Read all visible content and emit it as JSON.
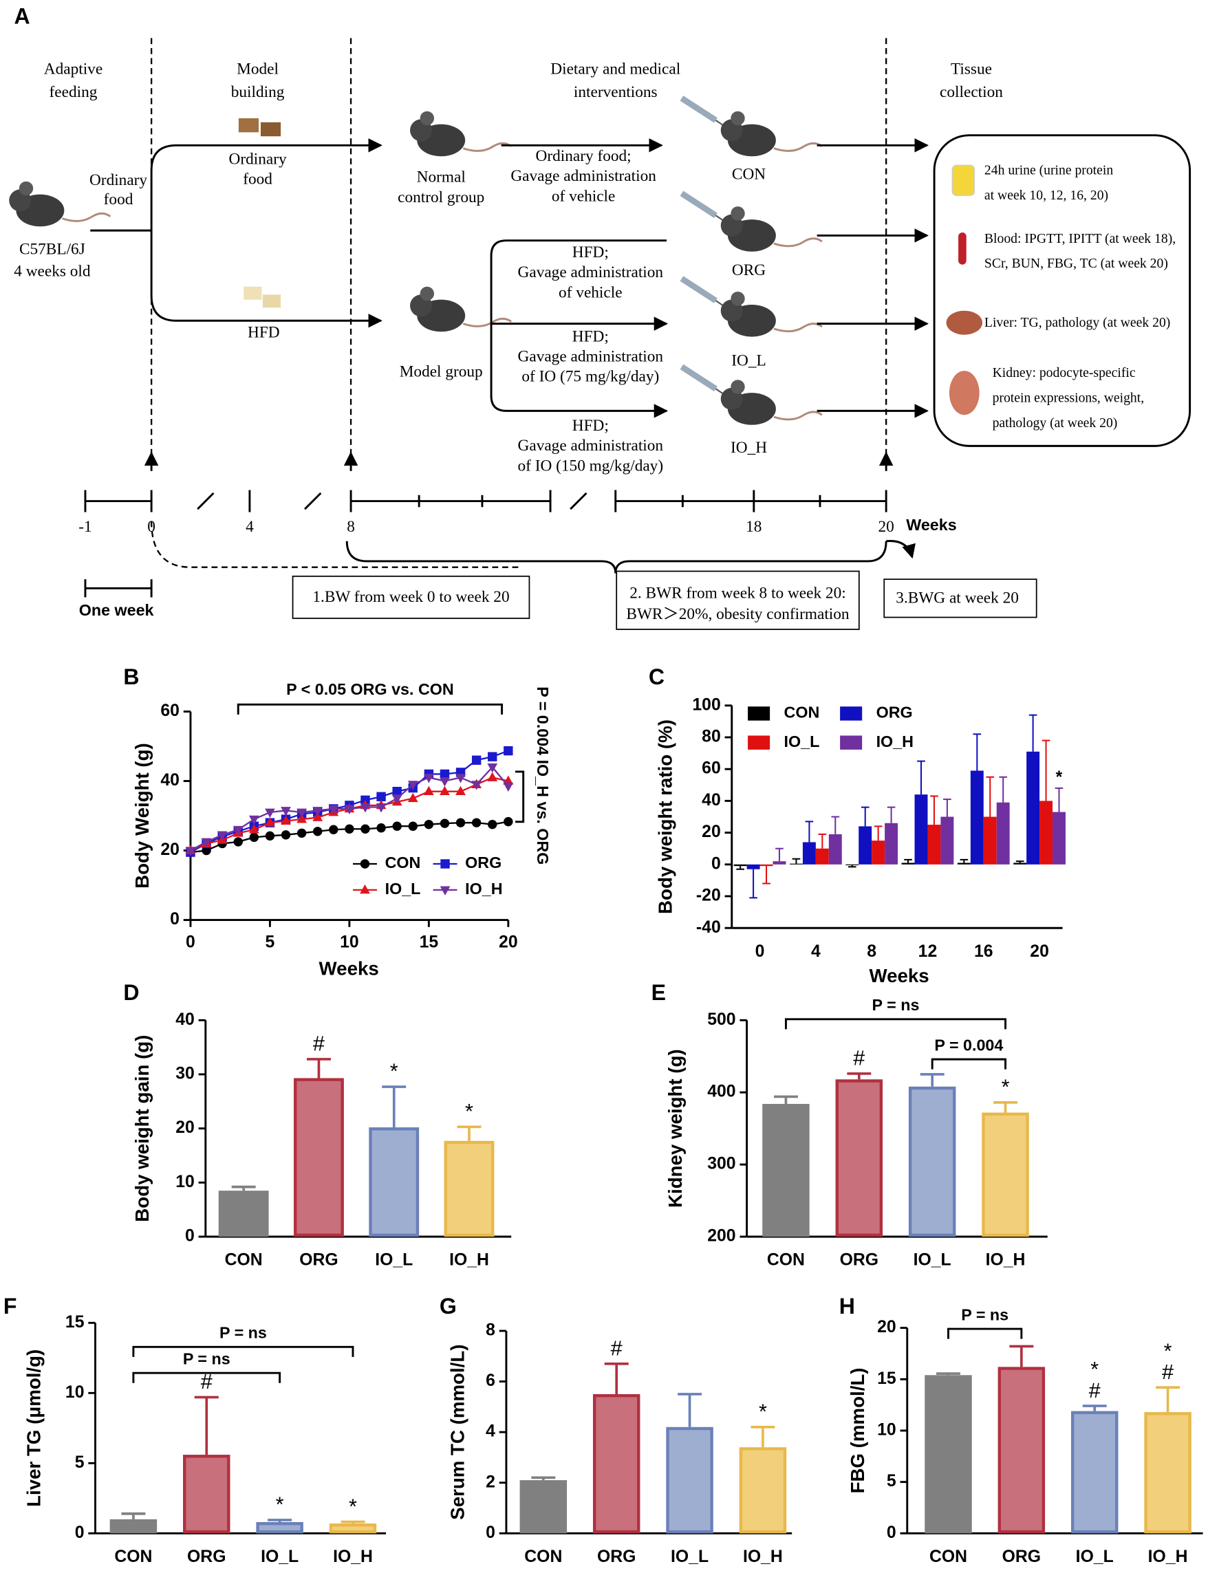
{
  "diagram": {
    "label": "A",
    "stages": [
      [
        "Adaptive",
        "feeding"
      ],
      [
        "Model",
        "building"
      ],
      [
        "Dietary and medical",
        "interventions"
      ],
      [
        "Tissue",
        "collection"
      ]
    ],
    "mouse": [
      "C57BL/6J",
      "4 weeks old"
    ],
    "feed": [
      "Ordinary",
      "food"
    ],
    "diets": [
      [
        "Ordinary",
        "food"
      ],
      [
        "HFD"
      ]
    ],
    "cohorts": [
      [
        "Normal",
        "control group"
      ],
      [
        "Model group"
      ]
    ],
    "treatments": [
      [
        "Ordinary food;",
        "Gavage  administration",
        "of vehicle"
      ],
      [
        "HFD;",
        "Gavage  administration",
        "of vehicle"
      ],
      [
        "HFD;",
        "Gavage  administration",
        "of  IO (75 mg/kg/day)"
      ],
      [
        "HFD;",
        "Gavage  administration",
        "of  IO (150 mg/kg/day)"
      ]
    ],
    "groups": [
      "CON",
      "ORG",
      "IO_L",
      "IO_H"
    ],
    "collection": [
      [
        "24h urine (urine protein",
        "at week 10, 12, 16, 20)"
      ],
      [
        "Blood: IPGTT, IPITT (at week 18),",
        "SCr, BUN, FBG, TC (at week 20)"
      ],
      [
        "Liver: TG, pathology (at week 20)"
      ],
      [
        "Kidney: podocyte-specific",
        "protein expressions, weight,",
        "pathology (at week 20)"
      ]
    ],
    "timeline": {
      "ticks": [
        "-1",
        "0",
        "4",
        "8",
        "18",
        "20"
      ],
      "unit": "Weeks",
      "scale": "One week"
    },
    "measures": [
      [
        "1.BW from week 0 to week 20"
      ],
      [
        "2. BWR from week 8 to week 20:",
        "BWR＞20%, obesity confirmation"
      ],
      [
        "3.BWG at week 20"
      ]
    ]
  },
  "chart_data": [
    {
      "type": "line",
      "label": "B",
      "ylabel": "Body Weight (g)",
      "xlabel": "Weeks",
      "x": [
        0,
        1,
        2,
        3,
        4,
        5,
        6,
        7,
        8,
        9,
        10,
        11,
        12,
        13,
        14,
        15,
        16,
        17,
        18,
        19,
        20
      ],
      "xlim": [
        0,
        20
      ],
      "xticks": [
        0,
        5,
        10,
        15,
        20
      ],
      "ylim": [
        0,
        60
      ],
      "yticks": [
        0,
        20,
        40,
        60
      ],
      "series": [
        {
          "name": "CON",
          "color": "#000000",
          "marker": "circle",
          "values": [
            19.5,
            20,
            22,
            22.5,
            23.8,
            24.2,
            24.5,
            25,
            25.5,
            26,
            26.2,
            26.2,
            26.5,
            27,
            27,
            27.5,
            27.8,
            28,
            28,
            27.5,
            28.3
          ]
        },
        {
          "name": "ORG",
          "color": "#1a1ad0",
          "marker": "square",
          "values": [
            19.5,
            22,
            24,
            25.5,
            27,
            28,
            29,
            30.5,
            31,
            32,
            33,
            34.5,
            35.5,
            37,
            38,
            42,
            42,
            42.5,
            46,
            47,
            48.7
          ]
        },
        {
          "name": "IO_L",
          "color": "#e0141e",
          "marker": "triangle",
          "values": [
            20,
            22,
            23,
            25,
            26,
            28,
            28.5,
            29,
            29.5,
            31,
            32,
            33,
            33,
            34,
            35,
            37,
            37,
            37,
            39,
            41,
            40
          ]
        },
        {
          "name": "IO_H",
          "color": "#7030a0",
          "marker": "triangle-down",
          "values": [
            20,
            22.5,
            24.5,
            26,
            29,
            31,
            31.5,
            31,
            31.5,
            32,
            32,
            32.5,
            32.5,
            35,
            39,
            41,
            40,
            41,
            39,
            44,
            38.5
          ]
        }
      ],
      "annotations": [
        "P < 0.05 ORG vs. CON",
        "P = 0.004 IO_H vs. ORG"
      ]
    },
    {
      "type": "bar",
      "label": "C",
      "ylabel": "Body weight ratio (%)",
      "xlabel": "Weeks",
      "categories": [
        "0",
        "4",
        "8",
        "12",
        "16",
        "20"
      ],
      "ylim": [
        -40,
        100
      ],
      "yticks": [
        -40,
        -20,
        0,
        20,
        40,
        60,
        80,
        100
      ],
      "series": [
        {
          "name": "CON",
          "color": "#000000",
          "values": [
            -1,
            0.5,
            -0.5,
            1,
            1,
            1
          ],
          "errors": [
            2,
            3,
            1,
            2,
            2,
            1
          ]
        },
        {
          "name": "ORG",
          "color": "#1010c0",
          "values": [
            -3,
            14,
            24,
            44,
            59,
            71
          ],
          "errors": [
            18,
            13,
            12,
            21,
            23,
            23
          ]
        },
        {
          "name": "IO_L",
          "color": "#e01010",
          "values": [
            -1,
            10,
            15,
            25,
            30,
            40
          ],
          "errors": [
            11,
            9,
            9,
            18,
            25,
            38
          ]
        },
        {
          "name": "IO_H",
          "color": "#7030a0",
          "values": [
            2,
            19,
            26,
            30,
            39,
            33
          ],
          "errors": [
            8,
            11,
            10,
            11,
            16,
            15
          ],
          "bar_annotations": [
            [],
            [],
            [],
            [],
            [],
            [
              "*"
            ]
          ]
        }
      ]
    },
    {
      "type": "bar",
      "label": "D",
      "ylabel": "Body weight gain (g)",
      "categories": [
        "CON",
        "ORG",
        "IO_L",
        "IO_H"
      ],
      "ylim": [
        0,
        40
      ],
      "yticks": [
        0,
        10,
        20,
        30,
        40
      ],
      "values": [
        8.5,
        29.3,
        20.2,
        17.7
      ],
      "errors": [
        0.7,
        3.5,
        7.5,
        2.6
      ],
      "colors": [
        "#808080",
        "#c8707b",
        "#9eaed0",
        "#f2cf7a"
      ],
      "edge_colors": [
        "#808080",
        "#b03040",
        "#6a80b8",
        "#e8b84a"
      ],
      "bar_annotations": [
        [],
        [
          "#"
        ],
        [
          "*"
        ],
        [
          "*"
        ]
      ]
    },
    {
      "type": "bar",
      "label": "E",
      "ylabel": "Kidney weight (g)",
      "categories": [
        "CON",
        "ORG",
        "IO_L",
        "IO_H"
      ],
      "ylim": [
        200,
        500
      ],
      "yticks": [
        200,
        300,
        400,
        500
      ],
      "values": [
        384,
        418,
        408,
        372
      ],
      "errors": [
        10,
        8,
        17,
        14
      ],
      "colors": [
        "#808080",
        "#c8707b",
        "#9eaed0",
        "#f2cf7a"
      ],
      "edge_colors": [
        "#808080",
        "#b03040",
        "#6a80b8",
        "#e8b84a"
      ],
      "bar_annotations": [
        [],
        [
          "#"
        ],
        [],
        [
          "*"
        ]
      ],
      "brackets": [
        {
          "label": "P = ns",
          "from": "CON",
          "to": "IO_H"
        },
        {
          "label": "P = 0.004",
          "from": "IO_L",
          "to": "IO_H"
        }
      ]
    },
    {
      "type": "bar",
      "label": "F",
      "ylabel": "Liver TG (μmol/g)",
      "categories": [
        "CON",
        "ORG",
        "IO_L",
        "IO_H"
      ],
      "ylim": [
        0,
        15
      ],
      "yticks": [
        0,
        5,
        10,
        15
      ],
      "values": [
        1.0,
        5.6,
        0.8,
        0.7
      ],
      "errors": [
        0.4,
        4.1,
        0.15,
        0.12
      ],
      "colors": [
        "#808080",
        "#c8707b",
        "#9eaed0",
        "#f2cf7a"
      ],
      "edge_colors": [
        "#808080",
        "#b03040",
        "#6a80b8",
        "#e8b84a"
      ],
      "bar_annotations": [
        [],
        [
          "#"
        ],
        [
          "*"
        ],
        [
          "*"
        ]
      ],
      "brackets": [
        {
          "label": "P = ns",
          "from": "CON",
          "to": "IO_H"
        },
        {
          "label": "P = ns",
          "from": "CON",
          "to": "IO_L"
        }
      ]
    },
    {
      "type": "bar",
      "label": "G",
      "ylabel": "Serum TC (mmol/L)",
      "categories": [
        "CON",
        "ORG",
        "IO_L",
        "IO_H"
      ],
      "ylim": [
        0,
        8
      ],
      "yticks": [
        0,
        2,
        4,
        6,
        8
      ],
      "values": [
        2.1,
        5.5,
        4.2,
        3.4
      ],
      "errors": [
        0.1,
        1.2,
        1.3,
        0.8
      ],
      "colors": [
        "#808080",
        "#c8707b",
        "#9eaed0",
        "#f2cf7a"
      ],
      "edge_colors": [
        "#808080",
        "#b03040",
        "#6a80b8",
        "#e8b84a"
      ],
      "bar_annotations": [
        [],
        [
          "#"
        ],
        [],
        [
          "*"
        ]
      ]
    },
    {
      "type": "bar",
      "label": "H",
      "ylabel": "FBG (mmol/L)",
      "categories": [
        "CON",
        "ORG",
        "IO_L",
        "IO_H"
      ],
      "ylim": [
        0,
        20
      ],
      "yticks": [
        0,
        5,
        10,
        15,
        20
      ],
      "values": [
        15.4,
        16.2,
        11.9,
        11.8
      ],
      "errors": [
        0.15,
        2.0,
        0.5,
        2.4
      ],
      "colors": [
        "#808080",
        "#c8707b",
        "#9eaed0",
        "#f2cf7a"
      ],
      "edge_colors": [
        "#808080",
        "#b03040",
        "#6a80b8",
        "#e8b84a"
      ],
      "bar_annotations": [
        [],
        [],
        [
          "#",
          "*"
        ],
        [
          "#",
          "*"
        ]
      ],
      "brackets": [
        {
          "label": "P = ns",
          "from": "CON",
          "to": "ORG"
        }
      ]
    }
  ]
}
